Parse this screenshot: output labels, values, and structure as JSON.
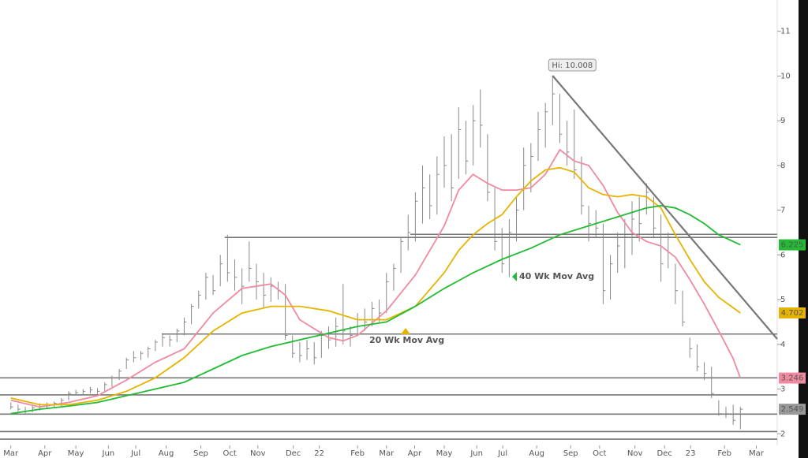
{
  "chart_data": {
    "type": "ohlc",
    "xlim": [
      -1.5,
      106.1
    ],
    "ylim": [
      1.74,
      11.7
    ],
    "yticks": [
      2,
      3,
      4,
      5,
      6,
      7,
      8,
      9,
      10,
      11
    ],
    "xticks": [
      {
        "value": 0,
        "label": "Mar"
      },
      {
        "value": 4.7,
        "label": "Apr"
      },
      {
        "value": 9,
        "label": "May"
      },
      {
        "value": 13.5,
        "label": "Jun"
      },
      {
        "value": 17.3,
        "label": "Jul"
      },
      {
        "value": 21.5,
        "label": "Aug"
      },
      {
        "value": 26.3,
        "label": "Sep"
      },
      {
        "value": 30.3,
        "label": "Oct"
      },
      {
        "value": 34.2,
        "label": "Nov"
      },
      {
        "value": 39.1,
        "label": "Dec"
      },
      {
        "value": 42.7,
        "label": "22"
      },
      {
        "value": 48,
        "label": "Feb"
      },
      {
        "value": 52,
        "label": "Mar"
      },
      {
        "value": 55.9,
        "label": "Apr"
      },
      {
        "value": 60,
        "label": "May"
      },
      {
        "value": 64.5,
        "label": "Jun"
      },
      {
        "value": 68.1,
        "label": "Jul"
      },
      {
        "value": 72.8,
        "label": "Aug"
      },
      {
        "value": 77.5,
        "label": "Sep"
      },
      {
        "value": 81.5,
        "label": "Oct"
      },
      {
        "value": 86.4,
        "label": "Nov"
      },
      {
        "value": 90.5,
        "label": "Dec"
      },
      {
        "value": 94.1,
        "label": "23"
      },
      {
        "value": 98.8,
        "label": "Feb"
      },
      {
        "value": 103.2,
        "label": "Mar"
      }
    ],
    "bars": {
      "color": "#888888",
      "x": [
        0,
        1,
        2,
        3,
        4,
        5,
        6,
        7,
        8,
        9,
        10,
        11,
        12,
        13,
        14,
        15,
        16,
        17,
        18,
        19,
        20,
        21,
        22,
        23,
        24,
        25,
        26,
        27,
        28,
        29,
        30,
        31,
        32,
        33,
        34,
        35,
        36,
        37,
        38,
        39,
        40,
        41,
        42,
        43,
        44,
        45,
        46,
        47,
        48,
        49,
        50,
        51,
        52,
        53,
        54,
        55,
        56,
        57,
        58,
        59,
        60,
        61,
        62,
        63,
        64,
        65,
        66,
        67,
        68,
        69,
        70,
        71,
        72,
        73,
        74,
        75,
        76,
        77,
        78,
        79,
        80,
        81,
        82,
        83,
        84,
        85,
        86,
        87,
        88,
        89,
        90,
        91,
        92,
        93,
        94,
        95,
        96,
        97,
        98,
        99,
        100,
        101
      ],
      "high": [
        2.7,
        2.65,
        2.6,
        2.62,
        2.68,
        2.7,
        2.72,
        2.8,
        2.95,
        2.98,
        3.0,
        3.05,
        3.02,
        3.15,
        3.3,
        3.45,
        3.7,
        3.85,
        3.85,
        3.95,
        4.1,
        4.25,
        4.2,
        4.35,
        4.6,
        4.9,
        5.2,
        5.6,
        5.55,
        6.0,
        6.45,
        5.9,
        5.7,
        6.3,
        5.8,
        5.6,
        5.5,
        5.4,
        5.35,
        4.2,
        4.05,
        4.1,
        4.05,
        4.3,
        4.4,
        4.6,
        5.35,
        4.4,
        4.7,
        4.8,
        4.95,
        5.0,
        5.6,
        5.8,
        6.4,
        6.9,
        7.4,
        8.0,
        7.8,
        8.2,
        8.65,
        8.7,
        9.3,
        9.0,
        9.35,
        9.7,
        8.7,
        7.5,
        6.6,
        6.8,
        7.3,
        8.4,
        8.5,
        9.2,
        9.4,
        10.008,
        9.6,
        9.0,
        9.25,
        8.2,
        7.1,
        7.0,
        6.7,
        6.0,
        6.5,
        6.8,
        7.2,
        7.3,
        7.6,
        7.3,
        6.9,
        6.5,
        5.8,
        5.2,
        4.15,
        4.0,
        3.6,
        3.5,
        2.75,
        2.6,
        2.65,
        2.6
      ],
      "low": [
        2.55,
        2.5,
        2.45,
        2.48,
        2.52,
        2.55,
        2.58,
        2.62,
        2.75,
        2.85,
        2.88,
        2.9,
        2.85,
        2.92,
        3.05,
        3.2,
        3.45,
        3.6,
        3.65,
        3.7,
        3.85,
        3.95,
        3.95,
        4.05,
        4.2,
        4.45,
        4.8,
        5.0,
        5.1,
        5.3,
        5.4,
        5.2,
        4.9,
        5.4,
        5.0,
        4.8,
        4.95,
        5.0,
        4.1,
        3.7,
        3.6,
        3.65,
        3.55,
        3.7,
        3.9,
        3.95,
        4.0,
        3.95,
        4.2,
        4.3,
        4.4,
        4.5,
        4.7,
        5.2,
        5.6,
        6.1,
        6.3,
        6.7,
        6.8,
        6.9,
        7.5,
        7.2,
        7.7,
        7.8,
        8.0,
        8.4,
        7.2,
        6.1,
        5.6,
        5.5,
        6.3,
        7.0,
        7.4,
        8.1,
        8.4,
        8.9,
        8.5,
        8.0,
        7.7,
        6.9,
        6.3,
        6.4,
        4.9,
        5.0,
        5.6,
        5.7,
        6.0,
        6.3,
        6.9,
        6.4,
        5.4,
        5.7,
        4.9,
        4.4,
        3.7,
        3.4,
        3.2,
        2.8,
        2.4,
        2.35,
        2.2,
        2.1
      ],
      "close": [
        2.6,
        2.55,
        2.5,
        2.58,
        2.6,
        2.62,
        2.68,
        2.75,
        2.9,
        2.92,
        2.95,
        2.98,
        2.95,
        3.1,
        3.25,
        3.4,
        3.65,
        3.7,
        3.8,
        3.9,
        4.05,
        4.15,
        4.1,
        4.3,
        4.5,
        4.85,
        5.1,
        5.5,
        5.2,
        5.8,
        5.6,
        5.5,
        5.3,
        5.7,
        5.4,
        5.1,
        5.3,
        5.2,
        4.2,
        3.8,
        3.75,
        3.9,
        3.7,
        4.2,
        4.1,
        4.4,
        4.3,
        4.2,
        4.55,
        4.5,
        4.8,
        4.7,
        5.4,
        5.7,
        6.3,
        6.5,
        7.2,
        7.5,
        7.1,
        7.8,
        8.0,
        7.5,
        8.8,
        8.1,
        9.0,
        8.9,
        7.4,
        6.3,
        5.8,
        6.5,
        7.0,
        8.0,
        8.2,
        8.8,
        9.2,
        9.6,
        8.7,
        8.3,
        7.9,
        7.1,
        6.7,
        6.6,
        5.2,
        5.8,
        6.2,
        6.4,
        6.8,
        6.7,
        7.4,
        6.6,
        5.8,
        6.4,
        5.2,
        4.5,
        3.9,
        3.5,
        3.35,
        2.9,
        2.45,
        2.45,
        2.3,
        2.549
      ]
    },
    "series": [
      {
        "color": "#f08aa0",
        "x": [
          0,
          4,
          8,
          12,
          16,
          20,
          24,
          28,
          32,
          36,
          38,
          40,
          44,
          46,
          48,
          52,
          56,
          60,
          62,
          64,
          66,
          68,
          70,
          72,
          74,
          76,
          78,
          80,
          82,
          84,
          86,
          88,
          90,
          92,
          94,
          96,
          98,
          100,
          101
        ],
        "values": [
          2.75,
          2.6,
          2.7,
          2.85,
          3.2,
          3.6,
          3.9,
          4.7,
          5.25,
          5.35,
          5.1,
          4.55,
          4.15,
          4.08,
          4.2,
          4.75,
          5.55,
          6.65,
          7.45,
          7.8,
          7.6,
          7.45,
          7.45,
          7.5,
          7.8,
          8.35,
          8.1,
          8.0,
          7.55,
          6.95,
          6.5,
          6.3,
          6.2,
          5.95,
          5.45,
          4.9,
          4.3,
          3.68,
          3.246
        ]
      },
      {
        "name": "20 Wk Mov Avg",
        "color": "#e6b400",
        "x": [
          0,
          4,
          8,
          12,
          16,
          20,
          24,
          28,
          32,
          36,
          40,
          44,
          48,
          52,
          56,
          60,
          62,
          64,
          66,
          68,
          70,
          72,
          74,
          76,
          78,
          80,
          82,
          84,
          86,
          88,
          90,
          92,
          94,
          96,
          98,
          101
        ],
        "values": [
          2.8,
          2.65,
          2.65,
          2.75,
          2.95,
          3.25,
          3.7,
          4.3,
          4.7,
          4.85,
          4.85,
          4.75,
          4.55,
          4.55,
          4.85,
          5.6,
          6.1,
          6.45,
          6.7,
          6.9,
          7.3,
          7.65,
          7.9,
          7.95,
          7.85,
          7.5,
          7.35,
          7.3,
          7.35,
          7.3,
          7.05,
          6.45,
          5.9,
          5.4,
          5.05,
          4.702
        ]
      },
      {
        "name": "40 Wk Mov Avg",
        "color": "#22bb33",
        "x": [
          0,
          4,
          8,
          12,
          16,
          20,
          24,
          28,
          32,
          36,
          40,
          44,
          48,
          52,
          56,
          60,
          64,
          68,
          72,
          76,
          80,
          84,
          88,
          90,
          92,
          94,
          96,
          98,
          101
        ],
        "values": [
          2.45,
          2.55,
          2.62,
          2.7,
          2.85,
          3.0,
          3.15,
          3.45,
          3.75,
          3.95,
          4.1,
          4.25,
          4.4,
          4.5,
          4.85,
          5.25,
          5.6,
          5.9,
          6.15,
          6.45,
          6.65,
          6.85,
          7.05,
          7.1,
          7.05,
          6.9,
          6.7,
          6.45,
          6.225
        ]
      }
    ],
    "levels": [
      {
        "value": 6.46,
        "x_start": 55.3
      },
      {
        "value": 6.39,
        "x_start": 29.6
      },
      {
        "value": 4.23,
        "x_start": 20.9
      },
      {
        "value": 3.25,
        "x_start": -1.5
      },
      {
        "value": 2.87,
        "x_start": -1.5
      },
      {
        "value": 2.44,
        "x_start": -1.5
      },
      {
        "value": 2.05,
        "x_start": -1.5
      },
      {
        "value": 1.88,
        "x_start": -1.5
      }
    ],
    "trendline": {
      "x": [
        75,
        106.1
      ],
      "y": [
        10.008,
        4.12
      ]
    },
    "high_annotation": "Hi: 10.008"
  }
}
